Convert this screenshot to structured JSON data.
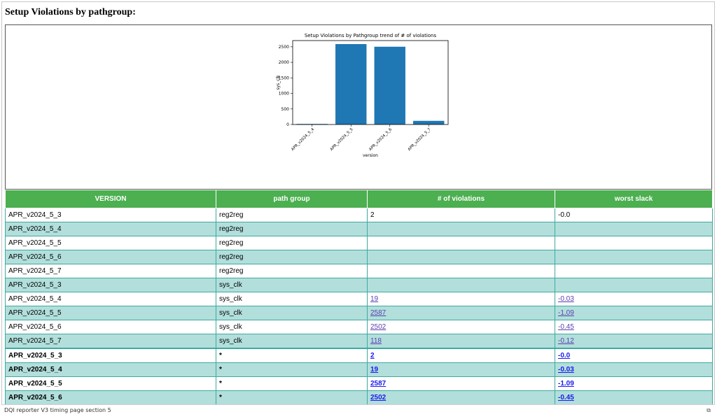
{
  "section_title": "Setup Violations by pathgroup:",
  "chart_data": {
    "type": "bar",
    "title": "Setup Violations by Pathgroup trend of # of violations",
    "xlabel": "version",
    "ylabel": "sys_clk",
    "categories": [
      "APR_v2024_5_4",
      "APR_v2024_5_5",
      "APR_v2024_5_6",
      "APR_v2024_5_7"
    ],
    "values": [
      19,
      2587,
      2502,
      118
    ],
    "ylim": [
      0,
      2700
    ],
    "yticks": [
      0,
      500,
      1000,
      1500,
      2000,
      2500
    ],
    "color": "#1f77b4",
    "grid": false
  },
  "table": {
    "headers": [
      "VERSION",
      "path group",
      "# of violations",
      "worst slack"
    ],
    "rows": [
      {
        "version": "APR_v2024_5_3",
        "group": "reg2reg",
        "violations": "2",
        "slack": "-0.0",
        "link": false,
        "bold": false
      },
      {
        "version": "APR_v2024_5_4",
        "group": "reg2reg",
        "violations": "",
        "slack": "",
        "link": false,
        "bold": false
      },
      {
        "version": "APR_v2024_5_5",
        "group": "reg2reg",
        "violations": "",
        "slack": "",
        "link": false,
        "bold": false
      },
      {
        "version": "APR_v2024_5_6",
        "group": "reg2reg",
        "violations": "",
        "slack": "",
        "link": false,
        "bold": false
      },
      {
        "version": "APR_v2024_5_7",
        "group": "reg2reg",
        "violations": "",
        "slack": "",
        "link": false,
        "bold": false
      },
      {
        "version": "APR_v2024_5_3",
        "group": "sys_clk",
        "violations": "",
        "slack": "",
        "link": false,
        "bold": false
      },
      {
        "version": "APR_v2024_5_4",
        "group": "sys_clk",
        "violations": "19",
        "slack": "-0.03",
        "link": true,
        "bold": false
      },
      {
        "version": "APR_v2024_5_5",
        "group": "sys_clk",
        "violations": "2587",
        "slack": "-1.09",
        "link": true,
        "bold": false
      },
      {
        "version": "APR_v2024_5_6",
        "group": "sys_clk",
        "violations": "2502",
        "slack": "-0.45",
        "link": true,
        "bold": false
      },
      {
        "version": "APR_v2024_5_7",
        "group": "sys_clk",
        "violations": "118",
        "slack": "-0.12",
        "link": true,
        "bold": false
      },
      {
        "version": "APR_v2024_5_3",
        "group": "*",
        "violations": "2",
        "slack": "-0.0",
        "link": true,
        "bold": true
      },
      {
        "version": "APR_v2024_5_4",
        "group": "*",
        "violations": "19",
        "slack": "-0.03",
        "link": true,
        "bold": true
      },
      {
        "version": "APR_v2024_5_5",
        "group": "*",
        "violations": "2587",
        "slack": "-1.09",
        "link": true,
        "bold": true
      },
      {
        "version": "APR_v2024_5_6",
        "group": "*",
        "violations": "2502",
        "slack": "-0.45",
        "link": true,
        "bold": true
      }
    ]
  },
  "footer": {
    "text": "DQI reporter V3 timing page section 5",
    "icon": "restore-window-icon",
    "icon_glyph": "⧉"
  }
}
